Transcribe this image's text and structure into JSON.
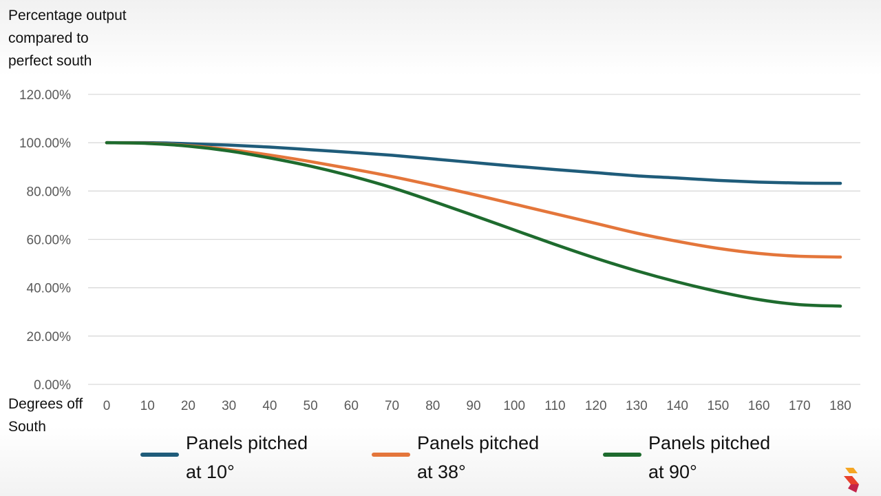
{
  "chart_data": {
    "type": "line",
    "title": "",
    "ylabel_lines": [
      "Percentage output",
      "compared to",
      "perfect south"
    ],
    "xlabel_lines": [
      "Degrees off",
      "South"
    ],
    "ylim": [
      0,
      120
    ],
    "y_ticks": [
      "0.00%",
      "20.00%",
      "40.00%",
      "60.00%",
      "80.00%",
      "100.00%",
      "120.00%"
    ],
    "y_tick_values": [
      0,
      20,
      40,
      60,
      80,
      100,
      120
    ],
    "x": [
      0,
      10,
      20,
      30,
      40,
      50,
      60,
      70,
      80,
      90,
      100,
      110,
      120,
      130,
      140,
      150,
      160,
      170,
      180
    ],
    "x_ticks": [
      "0",
      "10",
      "20",
      "30",
      "40",
      "50",
      "60",
      "70",
      "80",
      "90",
      "100",
      "110",
      "120",
      "130",
      "140",
      "150",
      "160",
      "170",
      "180"
    ],
    "grid": true,
    "legend_position": "bottom",
    "series": [
      {
        "name_lines": [
          "Panels pitched",
          "at 10°"
        ],
        "color": "#1f5c7a",
        "values": [
          100,
          100,
          99.6,
          99.0,
          98.2,
          97.1,
          96.0,
          94.8,
          93.3,
          91.8,
          90.3,
          88.9,
          87.6,
          86.3,
          85.4,
          84.4,
          83.7,
          83.3,
          83.2
        ]
      },
      {
        "name_lines": [
          "Panels pitched",
          "at 38°"
        ],
        "color": "#e4763b",
        "values": [
          100,
          99.8,
          98.8,
          97.2,
          94.9,
          92.2,
          89.2,
          86.0,
          82.4,
          78.6,
          74.6,
          70.6,
          66.6,
          62.6,
          59.2,
          56.3,
          54.2,
          53.0,
          52.7
        ]
      },
      {
        "name_lines": [
          "Panels pitched",
          "at 90°"
        ],
        "color": "#1e6b2e",
        "values": [
          100,
          99.7,
          98.6,
          96.6,
          93.7,
          90.3,
          86.2,
          81.4,
          75.8,
          69.9,
          63.9,
          57.9,
          52.2,
          47.0,
          42.4,
          38.4,
          35.1,
          33.0,
          32.4
        ]
      }
    ]
  },
  "logo": {
    "colors": [
      "#e8412c",
      "#f5a623",
      "#c4244a"
    ]
  }
}
